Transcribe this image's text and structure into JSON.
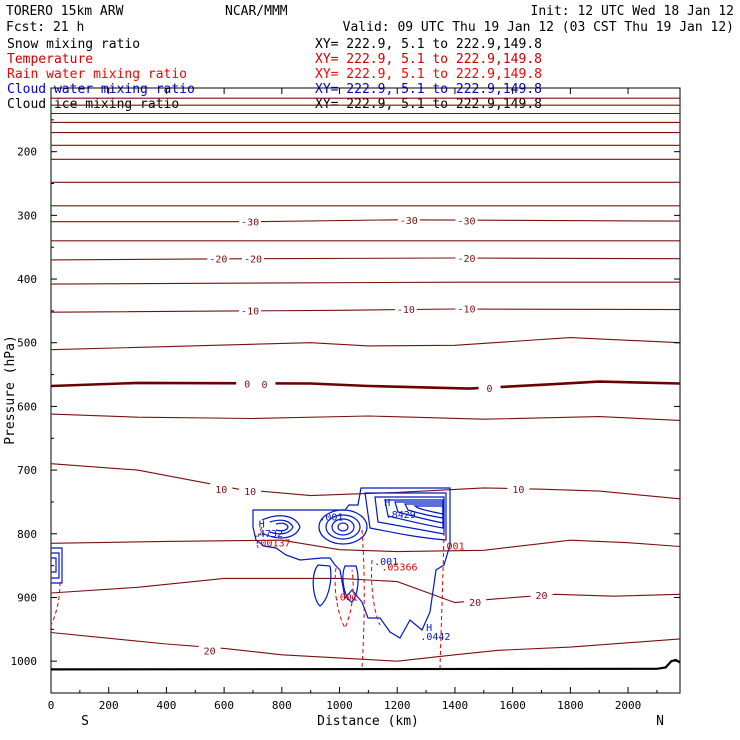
{
  "header": {
    "model": "TORERO  15km ARW",
    "org": "NCAR/MMM",
    "init": "Init: 12 UTC Wed 18 Jan 12",
    "fcst": "Fcst:   21 h",
    "valid": "Valid: 09 UTC Thu 19 Jan 12 (03 CST Thu 19 Jan 12)"
  },
  "fields": [
    {
      "name": "Snow mixing ratio",
      "xy": "XY= 222.9,  5.1 to 222.9,149.8",
      "color": "#000000"
    },
    {
      "name": "Temperature",
      "xy": "XY= 222.9,  5.1 to 222.9,149.8",
      "color": "#cc0000"
    },
    {
      "name": "Rain water mixing ratio",
      "xy": "XY= 222.9,  5.1 to 222.9,149.8",
      "color": "#ff0000"
    },
    {
      "name": "Cloud water mixing ratio",
      "xy": "XY= 222.9,  5.1 to 222.9,149.8",
      "color": "#0000cc"
    },
    {
      "name": "Cloud ice mixing ratio",
      "xy": "XY= 222.9,  5.1 to 222.9,149.8",
      "color": "#000000"
    }
  ],
  "colors": {
    "temperature": "#7a1010",
    "freezing": "#6a0000",
    "cloud_water": "#0018c8",
    "rain": "#dd0000",
    "terrain": "#000000"
  },
  "chart_data": {
    "type": "line",
    "title": "Vertical cross section",
    "xlabel": "Distance (km)",
    "ylabel": "Pressure (hPa)",
    "xlim": [
      0,
      2180
    ],
    "ylim": [
      1050,
      100
    ],
    "x_ticks": [
      0,
      200,
      400,
      600,
      800,
      1000,
      1200,
      1400,
      1600,
      1800,
      2000
    ],
    "y_ticks": [
      200,
      300,
      400,
      500,
      600,
      700,
      800,
      900,
      1000
    ],
    "end_labels": {
      "left": "S",
      "right": "N"
    },
    "temperature_contours": [
      {
        "t": -50,
        "p": [
          [
            0,
            116
          ],
          [
            2180,
            116
          ]
        ]
      },
      {
        "t": -50,
        "p": [
          [
            0,
            127
          ],
          [
            2180,
            127
          ]
        ]
      },
      {
        "t": -45,
        "p": [
          [
            0,
            140
          ],
          [
            2180,
            140
          ]
        ]
      },
      {
        "t": -45,
        "p": [
          [
            0,
            154
          ],
          [
            2180,
            154
          ]
        ]
      },
      {
        "t": -40,
        "p": [
          [
            0,
            170
          ],
          [
            2180,
            170
          ]
        ]
      },
      {
        "t": -40,
        "p": [
          [
            0,
            190
          ],
          [
            2180,
            190
          ]
        ]
      },
      {
        "t": -35,
        "p": [
          [
            0,
            212
          ],
          [
            2180,
            212
          ]
        ]
      },
      {
        "t": -35,
        "p": [
          [
            0,
            248
          ],
          [
            2180,
            248
          ]
        ]
      },
      {
        "t": -30,
        "p": [
          [
            0,
            285
          ],
          [
            2180,
            285
          ]
        ]
      },
      {
        "t": -30,
        "p": [
          [
            0,
            310
          ],
          [
            700,
            310
          ],
          [
            1200,
            307
          ],
          [
            2180,
            309
          ]
        ]
      },
      {
        "t": -25,
        "p": [
          [
            0,
            340
          ],
          [
            2180,
            340
          ]
        ]
      },
      {
        "t": -20,
        "p": [
          [
            0,
            370
          ],
          [
            700,
            368
          ],
          [
            1400,
            367
          ],
          [
            2180,
            368
          ]
        ]
      },
      {
        "t": -15,
        "p": [
          [
            0,
            408
          ],
          [
            800,
            406
          ],
          [
            1400,
            405
          ],
          [
            2180,
            405
          ]
        ]
      },
      {
        "t": -10,
        "p": [
          [
            0,
            452
          ],
          [
            1000,
            449
          ],
          [
            1400,
            447
          ],
          [
            2180,
            448
          ]
        ]
      },
      {
        "t": -5,
        "p": [
          [
            0,
            511
          ],
          [
            900,
            500
          ],
          [
            1100,
            505
          ],
          [
            1400,
            504
          ],
          [
            1800,
            492
          ],
          [
            2180,
            500
          ]
        ]
      },
      {
        "t": 0,
        "p": [
          [
            0,
            568
          ],
          [
            300,
            563
          ],
          [
            900,
            564
          ],
          [
            1100,
            568
          ],
          [
            1450,
            572
          ],
          [
            1700,
            566
          ],
          [
            1900,
            561
          ],
          [
            2180,
            564
          ]
        ]
      },
      {
        "t": 5,
        "p": [
          [
            0,
            612
          ],
          [
            300,
            617
          ],
          [
            700,
            619
          ],
          [
            1100,
            615
          ],
          [
            1500,
            620
          ],
          [
            1900,
            616
          ],
          [
            2180,
            622
          ]
        ]
      },
      {
        "t": 10,
        "p": [
          [
            0,
            690
          ],
          [
            300,
            700
          ],
          [
            650,
            730
          ],
          [
            900,
            740
          ],
          [
            1200,
            735
          ],
          [
            1500,
            728
          ],
          [
            1700,
            730
          ],
          [
            1900,
            733
          ],
          [
            2180,
            745
          ]
        ]
      },
      {
        "t": 15,
        "p": [
          [
            0,
            815
          ],
          [
            400,
            812
          ],
          [
            800,
            810
          ],
          [
            1000,
            825
          ],
          [
            1200,
            828
          ],
          [
            1500,
            826
          ],
          [
            1800,
            810
          ],
          [
            2000,
            814
          ],
          [
            2180,
            820
          ]
        ]
      },
      {
        "t": 20,
        "p": [
          [
            0,
            893
          ],
          [
            300,
            884
          ],
          [
            600,
            870
          ],
          [
            1000,
            870
          ],
          [
            1200,
            875
          ],
          [
            1400,
            908
          ],
          [
            1550,
            902
          ],
          [
            1750,
            895
          ],
          [
            1950,
            898
          ],
          [
            2180,
            895
          ]
        ]
      },
      {
        "t": 20,
        "p": [
          [
            0,
            955
          ],
          [
            400,
            973
          ],
          [
            600,
            980
          ],
          [
            800,
            990
          ],
          [
            1200,
            1000
          ],
          [
            1400,
            990
          ],
          [
            1550,
            983
          ],
          [
            1800,
            978
          ],
          [
            2180,
            965
          ]
        ]
      }
    ],
    "contour_labels": [
      {
        "text": "-30",
        "x": 690,
        "p": 310
      },
      {
        "text": "-30",
        "x": 1240,
        "p": 307
      },
      {
        "text": "-30",
        "x": 1440,
        "p": 308
      },
      {
        "text": "-20",
        "x": 580,
        "p": 368
      },
      {
        "text": "-20",
        "x": 700,
        "p": 368
      },
      {
        "text": "-20",
        "x": 1440,
        "p": 367
      },
      {
        "text": "-10",
        "x": 690,
        "p": 449
      },
      {
        "text": "-10",
        "x": 1230,
        "p": 447
      },
      {
        "text": "-10",
        "x": 1440,
        "p": 446
      },
      {
        "text": "0",
        "x": 680,
        "p": 564
      },
      {
        "text": "0",
        "x": 740,
        "p": 565
      },
      {
        "text": "0",
        "x": 1520,
        "p": 571
      },
      {
        "text": "10",
        "x": 590,
        "p": 730
      },
      {
        "text": "10",
        "x": 690,
        "p": 733
      },
      {
        "text": "10",
        "x": 1620,
        "p": 730
      },
      {
        "text": "20",
        "x": 1470,
        "p": 907
      },
      {
        "text": "20",
        "x": 1700,
        "p": 896
      },
      {
        "text": "20",
        "x": 550,
        "p": 983
      }
    ],
    "cloud_water_annotations": [
      {
        "text": "H",
        "x": 720,
        "p": 790
      },
      {
        "text": ".4732",
        "x": 700,
        "p": 805
      },
      {
        "text": ".001",
        "x": 930,
        "p": 779
      },
      {
        "text": "H",
        "x": 1155,
        "p": 756
      },
      {
        "text": ".8429",
        "x": 1160,
        "p": 775
      },
      {
        "text": ".001",
        "x": 1120,
        "p": 849
      },
      {
        "text": "H",
        "x": 1300,
        "p": 953
      },
      {
        "text": ".0442",
        "x": 1280,
        "p": 967
      }
    ],
    "rain_annotations": [
      {
        "text": ".00137",
        "x": 705,
        "p": 820
      },
      {
        "text": ".001",
        "x": 1350,
        "p": 825
      },
      {
        "text": ".05366",
        "x": 1145,
        "p": 858
      },
      {
        "text": ".001",
        "x": 980,
        "p": 905
      }
    ],
    "terrain": [
      [
        0,
        1013
      ],
      [
        2100,
        1012
      ],
      [
        2130,
        1010
      ],
      [
        2150,
        1000
      ],
      [
        2165,
        998
      ],
      [
        2180,
        1002
      ]
    ]
  }
}
